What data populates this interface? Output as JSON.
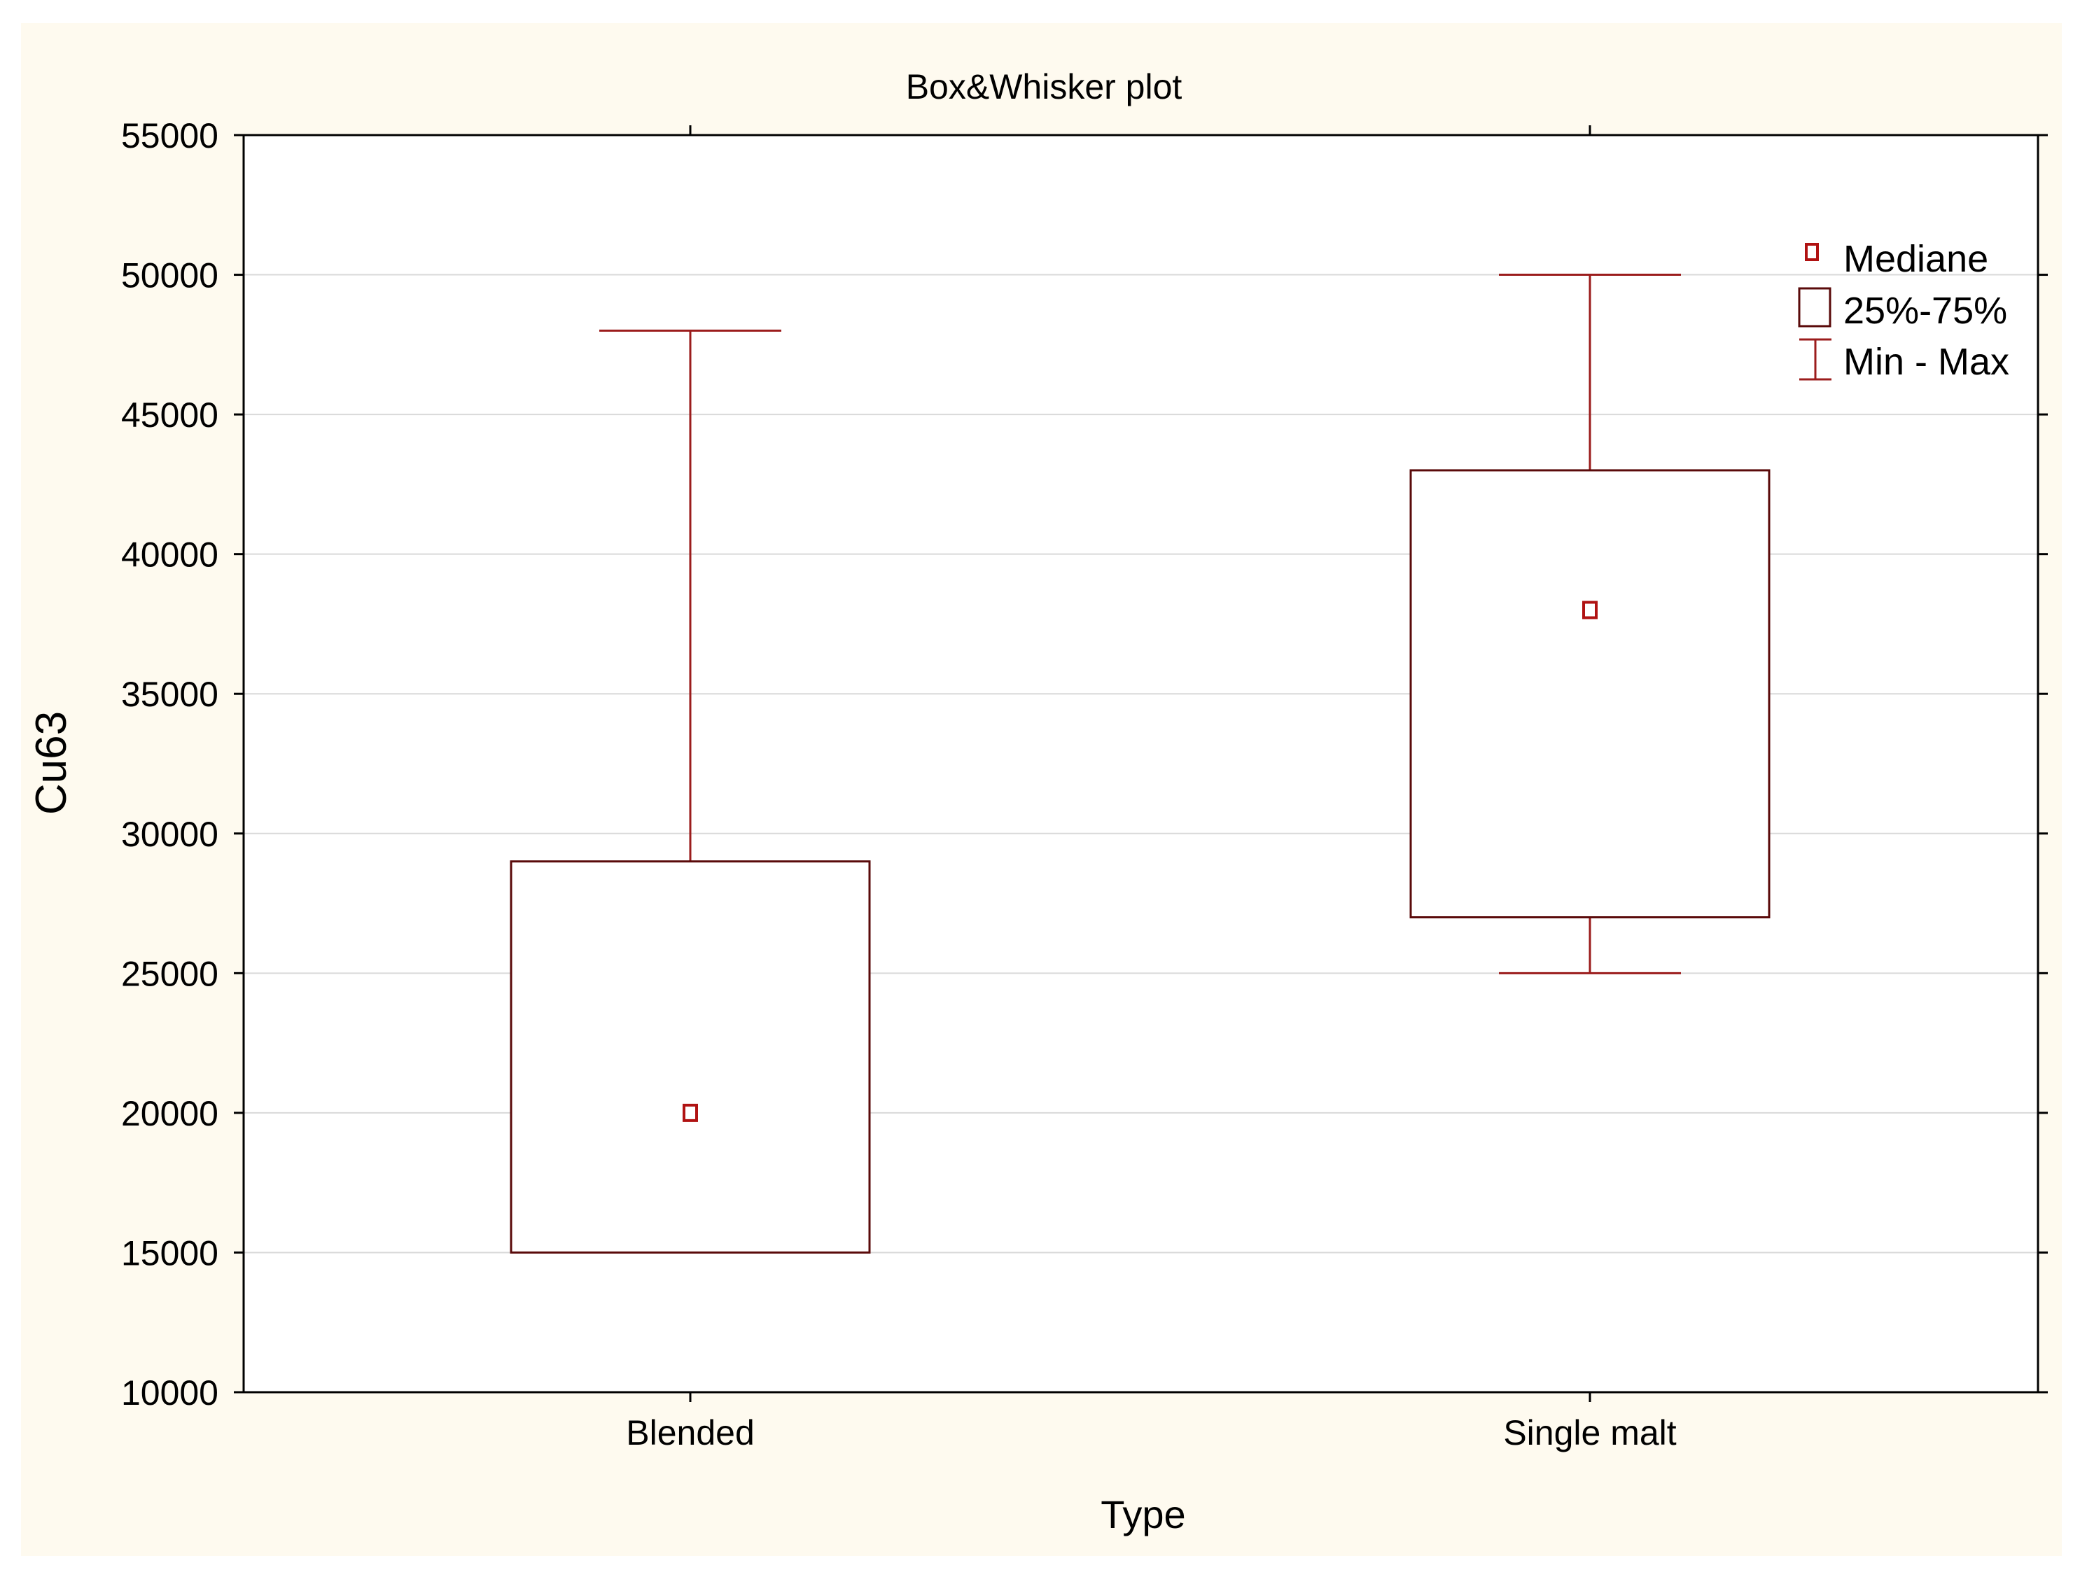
{
  "chart_data": {
    "type": "box",
    "title": "Box&Whisker plot",
    "xlabel": "Type",
    "ylabel": "Cu63",
    "categories": [
      "Blended",
      "Single malt"
    ],
    "boxes": [
      {
        "category": "Blended",
        "min": 15000,
        "q1": 15000,
        "median": 20000,
        "q3": 29000,
        "max": 48000
      },
      {
        "category": "Single malt",
        "min": 25000,
        "q1": 27000,
        "median": 38000,
        "q3": 43000,
        "max": 50000
      }
    ],
    "ylim": [
      10000,
      55000
    ],
    "yticks": [
      10000,
      15000,
      20000,
      25000,
      30000,
      35000,
      40000,
      45000,
      50000,
      55000
    ],
    "grid": true,
    "legend": {
      "placement": "top-right",
      "entries": [
        {
          "label": "Mediane",
          "symbol": "median"
        },
        {
          "label": "25%-75%",
          "symbol": "box"
        },
        {
          "label": "Min - Max",
          "symbol": "whisker"
        }
      ]
    },
    "colors": {
      "box_stroke": "#5a0a0a",
      "whisker": "#9b1c1c",
      "median": "#b01212",
      "background": "#fefaef",
      "plot_bg": "#ffffff",
      "grid": "#d9d9d9"
    }
  }
}
